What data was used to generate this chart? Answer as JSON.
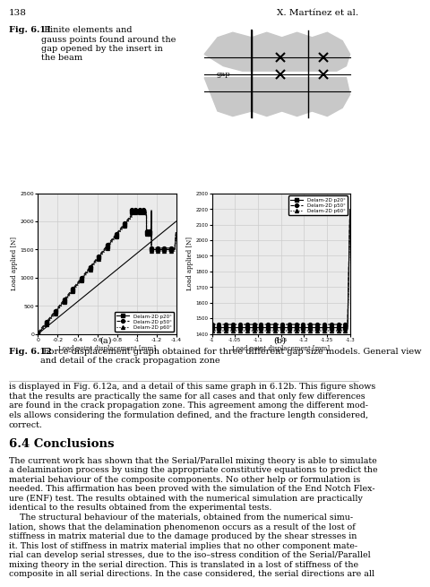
{
  "page_num": "138",
  "author": "X. Martínez et al.",
  "fig611_caption_bold": "Fig. 6.11",
  "fig611_caption_normal": " Finite elements and\ngauss points found around the\ngap opened by the insert in\nthe beam",
  "fig612_caption_bold": "Fig. 6.12",
  "fig612_caption_normal": " Force-displacement graph obtained for three different gap size models. General view\nand detail of the crack propagation zone",
  "section_title": "6.4 Conclusions",
  "plot_a_xlabel": "Load point displacement [mm]",
  "plot_a_ylabel": "Load applied [N]",
  "plot_a_label": "(a)",
  "plot_b_xlabel": "Load point displacement [mm]",
  "plot_b_ylabel": "Load applied [N]",
  "plot_b_label": "(b)",
  "legend_labels": [
    "Delam-2D p20°",
    "Delam-2D p50°",
    "Delam-2D p60°"
  ],
  "bg_color": "#ffffff",
  "grid_color": "#cccccc",
  "plot_bg": "#ebebeb",
  "body_lines_1": [
    "is displayed in Fig. 6.12a, and a detail of this same graph in 6.12b. This figure shows",
    "that the results are practically the same for all cases and that only few differences",
    "are found in the crack propagation zone. This agreement among the different mod-",
    "els allows considering the formulation defined, and the fracture length considered,",
    "correct."
  ],
  "body_lines_2": [
    "The current work has shown that the Serial/Parallel mixing theory is able to simulate",
    "a delamination process by using the appropriate constitutive equations to predict the",
    "material behaviour of the composite components. No other help or formulation is",
    "needed. This affirmation has been proved with the simulation of the End Notch Flex-",
    "ure (ENF) test. The results obtained with the numerical simulation are practically",
    "identical to the results obtained from the experimental tests.",
    "    The structural behaviour of the materials, obtained from the numerical simu-",
    "lation, shows that the delamination phenomenon occurs as a result of the lost of",
    "stiffness in matrix material due to the damage produced by the shear stresses in",
    "it. This lost of stiffness in matrix material implies that no other component mate-",
    "rial can develop serial stresses, due to the iso–stress condition of the Serial/Parallel",
    "mixing theory in the serial direction. This is translated in a lost of stiffness of the",
    "composite in all serial directions. In the case considered, the serial directions are all"
  ]
}
